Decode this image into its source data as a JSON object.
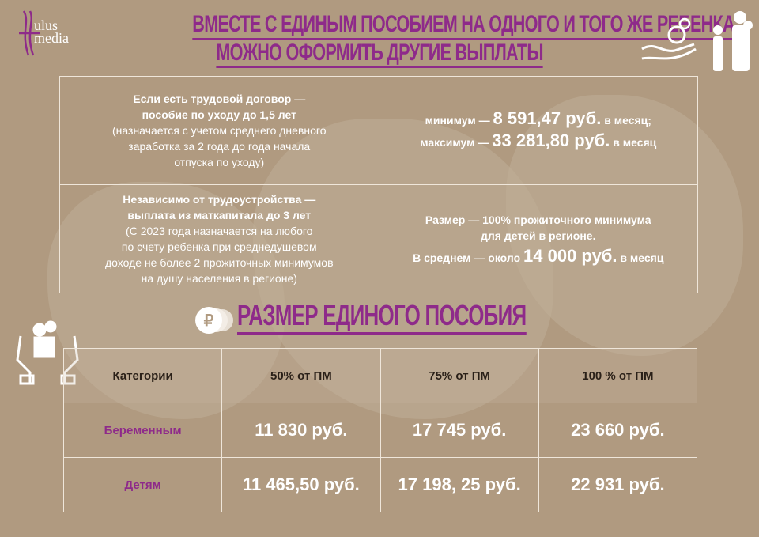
{
  "logo": {
    "line1": "ulus",
    "line2": "media"
  },
  "header": {
    "title_line1": "ВМЕСТЕ С ЕДИНЫМ ПОСОБИЕМ НА ОДНОГО И ТОГО ЖЕ РЕБЕНКА",
    "title_line2": "МОЖНО ОФОРМИТЬ ДРУГИЕ ВЫПЛАТЫ"
  },
  "other_payments": [
    {
      "condition_bold": [
        "Если есть трудовой договор —",
        "пособие по уходу до 1,5 лет"
      ],
      "condition_note": [
        "(назначается с учетом среднего дневного",
        "заработка за 2 года до года начала",
        "отпуска по уходу)"
      ],
      "amount_lines": [
        {
          "prefix": "минимум — ",
          "value": "8 591,47 руб.",
          "suffix": " в месяц;"
        },
        {
          "prefix": "максимум — ",
          "value": "33 281,80 руб.",
          "suffix": " в месяц"
        }
      ]
    },
    {
      "condition_bold": [
        "Независимо от трудоустройства —",
        "выплата из маткапитала до 3 лет"
      ],
      "condition_note": [
        "(С 2023 года назначается на любого",
        "по счету ребенка при среднедушевом",
        "доходе не более 2 прожиточных минимумов",
        "на душу населения в регионе)"
      ],
      "amount_text": [
        "Размер — 100% прожиточного минимума",
        "для детей в регионе."
      ],
      "amount_lines": [
        {
          "prefix": "В среднем — около ",
          "value": "14 000 руб.",
          "suffix": " в месяц"
        }
      ]
    }
  ],
  "unified_benefit": {
    "title": "РАЗМЕР ЕДИНОГО ПОСОБИЯ",
    "columns": [
      "Категории",
      "50% от ПМ",
      "75% от ПМ",
      "100 % от ПМ"
    ],
    "rows": [
      {
        "category": "Беременным",
        "values": [
          "11 830 руб.",
          "17 745 руб.",
          "23 660 руб."
        ]
      },
      {
        "category": "Детям",
        "values": [
          "11 465,50 руб.",
          "17 198, 25 руб.",
          "22 931 руб."
        ]
      }
    ]
  },
  "colors": {
    "background": "#b09a80",
    "accent": "#8e2a8a",
    "text": "#ffffff"
  },
  "icons": [
    "logo-mark",
    "hand-coins-icon",
    "family-icon",
    "ruble-coins-icon",
    "hands-family-icon"
  ]
}
